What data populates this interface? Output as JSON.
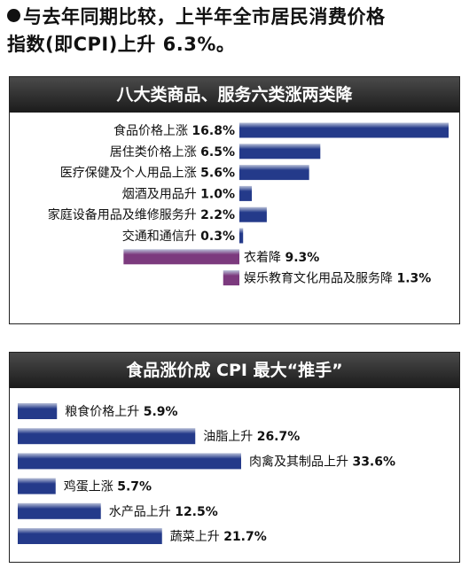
{
  "headline": {
    "line1": "与去年同期比较，上半年全市居民消费价格",
    "line2": "指数(即CPI)上升 6.3%。"
  },
  "colors": {
    "increase_bar": "#243a8a",
    "decrease_bar": "#7c3a7e",
    "title_bar": "#2a2a2a"
  },
  "chart_data": [
    {
      "type": "bar",
      "orientation": "horizontal",
      "title": "八大类商品、服务六类涨两类降",
      "items": [
        {
          "label": "食品价格上涨",
          "value": 16.8,
          "value_label": "16.8%"
        },
        {
          "label": "居住类价格上涨",
          "value": 6.5,
          "value_label": "6.5%"
        },
        {
          "label": "医疗保健及个人用品上涨",
          "value": 5.6,
          "value_label": "5.6%"
        },
        {
          "label": "烟酒及用品升",
          "value": 1.0,
          "value_label": "1.0%"
        },
        {
          "label": "家庭设备用品及维修服务升",
          "value": 2.2,
          "value_label": "2.2%"
        },
        {
          "label": "交通和通信升",
          "value": 0.3,
          "value_label": "0.3%"
        },
        {
          "label": "衣着降",
          "value": -9.3,
          "value_label": "9.3%"
        },
        {
          "label": "娱乐教育文化用品及服务降",
          "value": -1.3,
          "value_label": "1.3%"
        }
      ]
    },
    {
      "type": "bar",
      "orientation": "horizontal",
      "title": "食品涨价成 CPI 最大“推手”",
      "items": [
        {
          "label": "粮食价格上升",
          "value": 5.9,
          "value_label": "5.9%"
        },
        {
          "label": "油脂上升",
          "value": 26.7,
          "value_label": "26.7%"
        },
        {
          "label": "肉禽及其制品上升",
          "value": 33.6,
          "value_label": "33.6%"
        },
        {
          "label": "鸡蛋上涨",
          "value": 5.7,
          "value_label": "5.7%"
        },
        {
          "label": "水产品上升",
          "value": 12.5,
          "value_label": "12.5%"
        },
        {
          "label": "蔬菜上升",
          "value": 21.7,
          "value_label": "21.7%"
        }
      ]
    }
  ]
}
